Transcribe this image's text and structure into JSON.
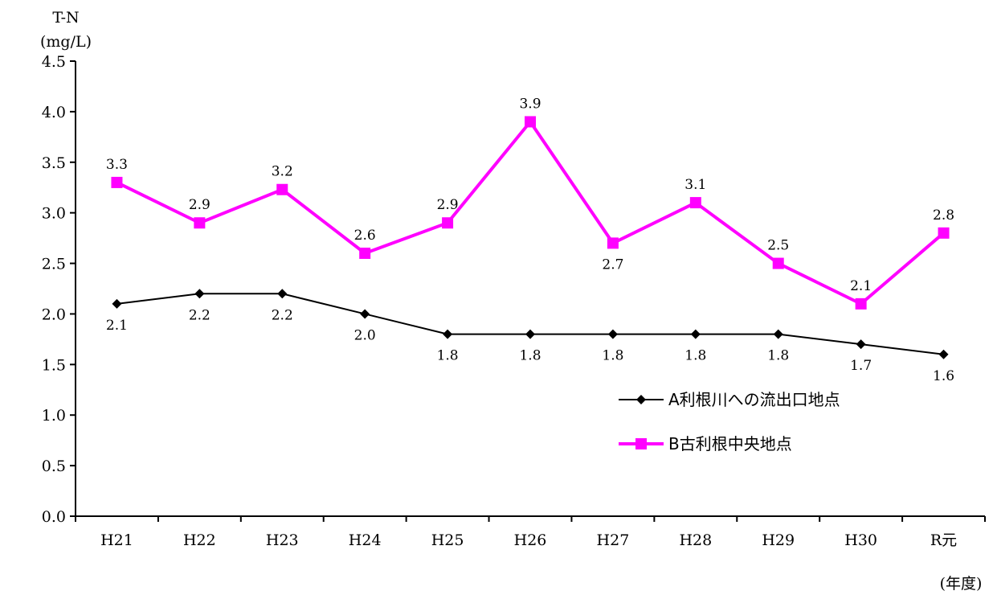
{
  "chart_data": {
    "type": "line",
    "ylabel": "T-N",
    "yunit": "(mg/L)",
    "xlabel": "(年度)",
    "ylim": [
      0,
      4.5
    ],
    "ytick_labels": [
      "0.0",
      "0.5",
      "1.0",
      "1.5",
      "2.0",
      "2.5",
      "3.0",
      "3.5",
      "4.0",
      "4.5"
    ],
    "categories": [
      "H21",
      "H22",
      "H23",
      "H24",
      "H25",
      "H26",
      "H27",
      "H28",
      "H29",
      "H30",
      "R元"
    ],
    "grid": false,
    "legend_position": "bottom-right",
    "series": [
      {
        "name": "A利根川への流出口地点",
        "color": "#000000",
        "marker": "diamond",
        "values": [
          2.1,
          2.2,
          2.2,
          2.0,
          1.8,
          1.8,
          1.8,
          1.8,
          1.8,
          1.7,
          1.6
        ],
        "data_labels": [
          "2.1",
          "2.2",
          "2.2",
          "2.0",
          "1.8",
          "1.8",
          "1.8",
          "1.8",
          "1.8",
          "1.7",
          "1.6"
        ]
      },
      {
        "name": "B古利根中央地点",
        "color": "#ff00ff",
        "marker": "square",
        "values": [
          3.3,
          2.9,
          3.23,
          2.6,
          2.9,
          3.9,
          2.7,
          3.1,
          2.5,
          2.1,
          2.8
        ],
        "data_labels": [
          "3.3",
          "2.9",
          "3.2",
          "2.6",
          "2.9",
          "3.9",
          "2.7",
          "3.1",
          "2.5",
          "2.1",
          "2.8"
        ]
      }
    ]
  }
}
